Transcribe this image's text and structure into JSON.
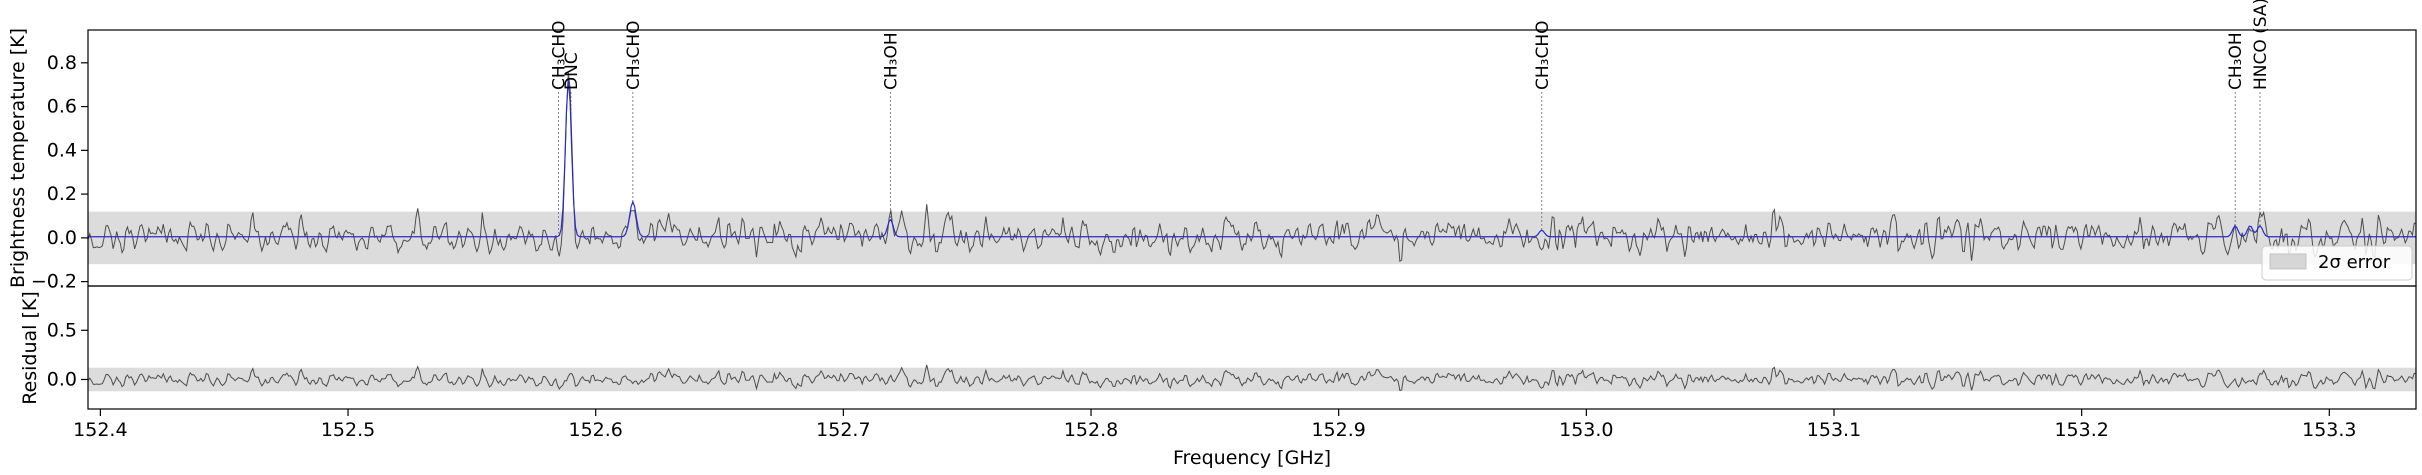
{
  "chart_data": [
    {
      "type": "line",
      "panel": "spectrum",
      "ylabel": "Brightness temperature [K]",
      "xlim": [
        152.395,
        153.335
      ],
      "ylim": [
        -0.22,
        0.95
      ],
      "yticks": [
        -0.2,
        0.0,
        0.2,
        0.4,
        0.6,
        0.8
      ],
      "ytick_labels": [
        "−0.2",
        "0.0",
        "0.2",
        "0.4",
        "0.6",
        "0.8"
      ],
      "error_band_2sigma": [
        -0.12,
        0.12
      ],
      "noise_rms": 0.045,
      "legend": {
        "entries": [
          "2σ error"
        ],
        "placement": "lower-right"
      },
      "series": [
        {
          "color": "#555555",
          "kind": "observed"
        },
        {
          "color": "#2222cc",
          "kind": "model"
        }
      ],
      "features": [
        {
          "x": 152.589,
          "amp": 0.72,
          "sigma": 0.0012
        },
        {
          "x": 152.615,
          "amp": 0.16,
          "sigma": 0.0013
        },
        {
          "x": 152.719,
          "amp": 0.08,
          "sigma": 0.0011
        },
        {
          "x": 152.982,
          "amp": 0.03,
          "sigma": 0.0011
        },
        {
          "x": 153.262,
          "amp": 0.05,
          "sigma": 0.0011
        },
        {
          "x": 153.268,
          "amp": 0.05,
          "sigma": 0.0011
        },
        {
          "x": 153.272,
          "amp": 0.05,
          "sigma": 0.0011
        }
      ],
      "line_ids": [
        {
          "x": 152.585,
          "label": "CH₃CHO"
        },
        {
          "x": 152.59,
          "label": "DNC"
        },
        {
          "x": 152.615,
          "label": "CH₃CHO"
        },
        {
          "x": 152.719,
          "label": "CH₃OH"
        },
        {
          "x": 152.982,
          "label": "CH₃CHO"
        },
        {
          "x": 153.262,
          "label": "CH₃OH"
        },
        {
          "x": 153.272,
          "label": "HNCO (SA)"
        }
      ]
    },
    {
      "type": "line",
      "panel": "residual",
      "xlabel": "Frequency [GHz]",
      "ylabel": "Residual [K]",
      "xlim": [
        152.395,
        153.335
      ],
      "ylim": [
        -0.3,
        0.95
      ],
      "yticks": [
        0.0,
        0.5
      ],
      "ytick_labels": [
        "0.0",
        "0.5"
      ],
      "xticks": [
        152.4,
        152.5,
        152.6,
        152.7,
        152.8,
        152.9,
        153.0,
        153.1,
        153.2,
        153.3
      ],
      "xtick_labels": [
        "152.4",
        "152.5",
        "152.6",
        "152.7",
        "152.8",
        "152.9",
        "153.0",
        "153.1",
        "153.2",
        "153.3"
      ],
      "error_band_2sigma": [
        -0.12,
        0.12
      ]
    }
  ]
}
